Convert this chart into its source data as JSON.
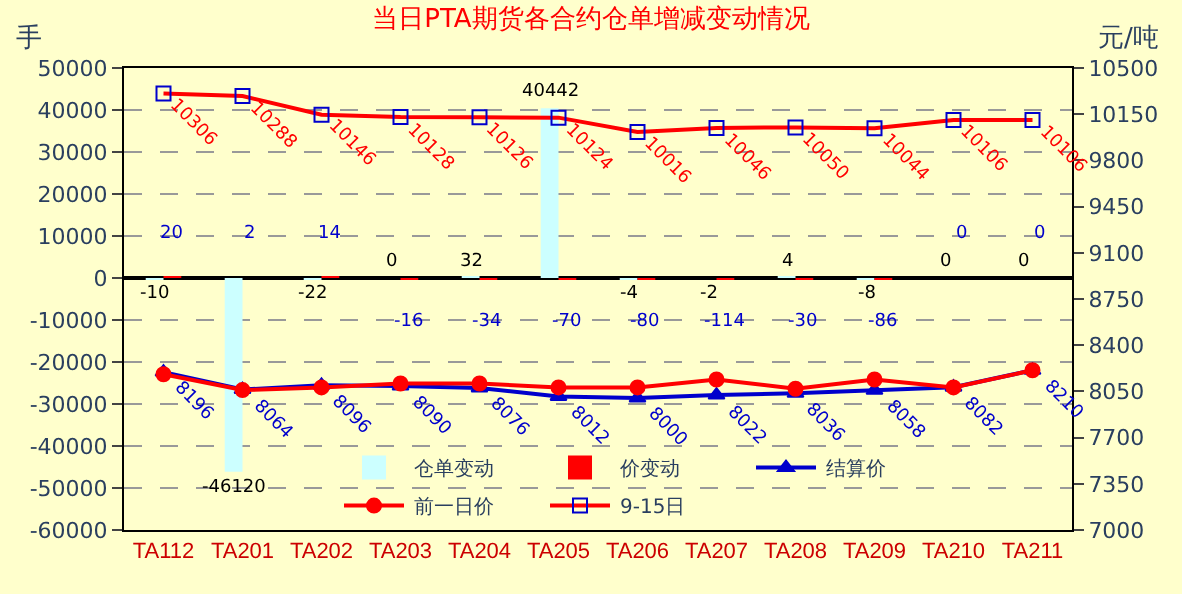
{
  "chart_data": {
    "type": "bar",
    "title": "当日PTA期货各合约仓单增减变动情况",
    "ylabel": "手",
    "y2label": "元/吨",
    "categories": [
      "TA112",
      "TA201",
      "TA202",
      "TA203",
      "TA204",
      "TA205",
      "TA206",
      "TA207",
      "TA208",
      "TA209",
      "TA210",
      "TA211"
    ],
    "series": [
      {
        "name": "仓单变动",
        "color": "#ccffff",
        "data_labels": true,
        "values": [
          -10,
          -46120,
          -22,
          0,
          32,
          40442,
          -4,
          -2,
          4,
          -8,
          0,
          0
        ]
      },
      {
        "name": "价变动",
        "color": "#ff0000",
        "data_labels": true,
        "values": [
          20,
          2,
          14,
          -16,
          -34,
          -70,
          -80,
          -114,
          -30,
          -86,
          0,
          0
        ]
      },
      {
        "name": "结算价",
        "type": "line",
        "axis": "y2",
        "color": "#0000cc",
        "marker": "triangle",
        "data_labels": true,
        "values": [
          8196,
          8064,
          8096,
          8090,
          8076,
          8012,
          8000,
          8022,
          8036,
          8058,
          8082,
          8210
        ]
      },
      {
        "name": "前一日价",
        "type": "line",
        "axis": "y2",
        "color": "#ff0000",
        "marker": "circle",
        "values": [
          8180,
          8060,
          8080,
          8110,
          8110,
          8080,
          8080,
          8140,
          8070,
          8140,
          8080,
          8210
        ]
      },
      {
        "name": "9-15日",
        "type": "line",
        "axis": "y2",
        "color": "#ff0000",
        "marker": "square",
        "data_labels": true,
        "values": [
          10306,
          10288,
          10146,
          10128,
          10126,
          10124,
          10016,
          10046,
          10050,
          10044,
          10106,
          10106
        ]
      }
    ],
    "ylim": [
      -60000,
      50000
    ],
    "yticks": [
      -60000,
      -50000,
      -40000,
      -30000,
      -20000,
      -10000,
      0,
      10000,
      20000,
      30000,
      40000,
      50000
    ],
    "y2lim": [
      7000,
      10500
    ],
    "y2ticks": [
      7000,
      7350,
      7700,
      8050,
      8400,
      8750,
      9100,
      9450,
      9800,
      10150,
      10500
    ],
    "grid": "y",
    "legend": "bottom"
  }
}
